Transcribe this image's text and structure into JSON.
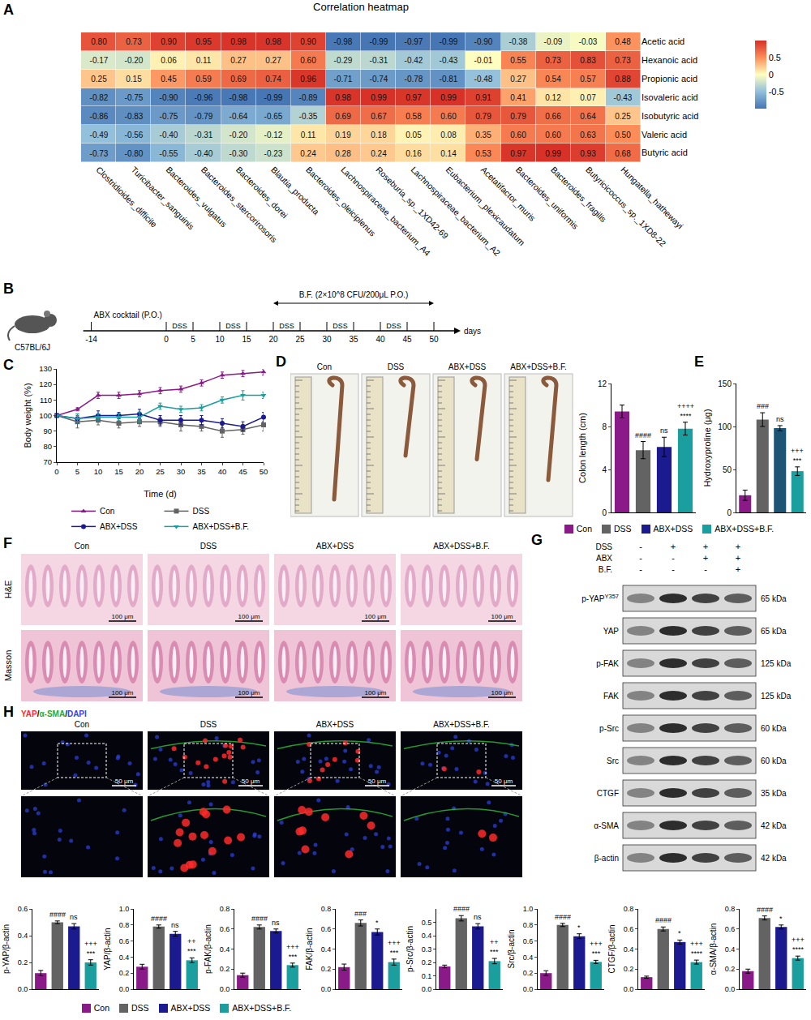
{
  "chart_data": [
    {
      "type": "heatmap",
      "panel": "A",
      "title": "Correlation heatmap",
      "x": [
        "Clostridioides_difficile",
        "Turicibacter_sanguinis",
        "Bacteroides_vulgatus",
        "Bacteroides_stercorirosoris",
        "Bacteroides_dorei",
        "Blautia_producta",
        "Bacteroides_oleiciplenus",
        "Lachnospiraceae_bacterium_A4",
        "Roseburia_sp._1XD42-69",
        "Lachnospiraceae_bacterium_A2",
        "Eubacterium_plexicaudatum",
        "Acetatifactor_muris",
        "Bacteroides_uniformis",
        "Bacteroides_fragilis",
        "Butyricicoccus_sp._1XD8-22",
        "Hungatella_hathewayi"
      ],
      "y": [
        "Acetic acid",
        "Hexanoic acid",
        "Propionic acid",
        "Isovaleric acid",
        "Isobutyric acid",
        "Valeric acid",
        "Butyric acid"
      ],
      "z": [
        [
          0.8,
          0.73,
          0.9,
          0.95,
          0.98,
          0.98,
          0.9,
          -0.98,
          -0.99,
          -0.97,
          -0.99,
          -0.9,
          -0.38,
          -0.09,
          -0.03,
          0.48
        ],
        [
          -0.17,
          -0.2,
          0.06,
          0.11,
          0.27,
          0.27,
          0.6,
          -0.29,
          -0.31,
          -0.42,
          -0.43,
          -0.01,
          0.55,
          0.73,
          0.83,
          0.73
        ],
        [
          0.25,
          0.15,
          0.45,
          0.59,
          0.69,
          0.74,
          0.96,
          -0.71,
          -0.74,
          -0.78,
          -0.81,
          -0.48,
          0.27,
          0.54,
          0.57,
          0.88
        ],
        [
          -0.82,
          -0.75,
          -0.9,
          -0.96,
          -0.98,
          -0.99,
          -0.89,
          0.98,
          0.99,
          0.97,
          0.99,
          0.91,
          0.41,
          0.12,
          0.07,
          -0.43
        ],
        [
          -0.86,
          -0.83,
          -0.75,
          -0.79,
          -0.64,
          -0.65,
          -0.35,
          0.69,
          0.67,
          0.58,
          0.6,
          0.79,
          0.79,
          0.66,
          0.64,
          0.25
        ],
        [
          -0.49,
          -0.56,
          -0.4,
          -0.31,
          -0.2,
          -0.12,
          0.11,
          0.19,
          0.18,
          0.05,
          0.08,
          0.35,
          0.6,
          0.6,
          0.63,
          0.5
        ],
        [
          -0.73,
          -0.8,
          -0.55,
          -0.4,
          -0.3,
          -0.23,
          0.24,
          0.28,
          0.24,
          0.16,
          0.14,
          0.53,
          0.97,
          0.99,
          0.93,
          0.68
        ]
      ],
      "data_labels": true,
      "colorbar": {
        "range": [
          -1,
          1
        ],
        "ticks": [
          0.5,
          0,
          -0.5
        ]
      }
    },
    {
      "type": "line",
      "panel": "C",
      "xlabel": "Time (d)",
      "ylabel": "Body weight (%)",
      "x": [
        0,
        5,
        10,
        15,
        20,
        25,
        30,
        35,
        40,
        45,
        50
      ],
      "xlim": [
        0,
        50
      ],
      "xticks": [
        0,
        5,
        10,
        15,
        20,
        25,
        30,
        35,
        40,
        45,
        50
      ],
      "ylim": [
        70,
        130
      ],
      "yticks": [
        70,
        80,
        90,
        100,
        110,
        120,
        130
      ],
      "legend": "bottom",
      "series": [
        {
          "name": "Con",
          "color": "#8b1a89",
          "marker": "triangle-up",
          "line_style": "solid",
          "values": [
            100,
            104,
            113,
            113,
            114,
            116,
            117,
            121,
            126,
            127,
            128
          ],
          "errors": [
            0,
            1,
            2,
            2,
            2,
            2,
            2,
            2,
            2,
            2,
            2
          ]
        },
        {
          "name": "DSS",
          "color": "#636363",
          "marker": "square",
          "line_style": "solid",
          "values": [
            100,
            96,
            97,
            95,
            96,
            96,
            94,
            93,
            90,
            91,
            94
          ],
          "errors": [
            0,
            4,
            3,
            3,
            3,
            3,
            4,
            3,
            4,
            3,
            4
          ]
        },
        {
          "name": "ABX+DSS",
          "color": "#1b1b8f",
          "marker": "circle",
          "line_style": "solid",
          "values": [
            100,
            98,
            100,
            100,
            101,
            97,
            97,
            97,
            95,
            93,
            99
          ],
          "errors": [
            0,
            3,
            3,
            2,
            3,
            3,
            3,
            3,
            3,
            3,
            3
          ]
        },
        {
          "name": "ABX+DSS+B.F.",
          "color": "#1a9e9e",
          "marker": "triangle-down",
          "line_style": "solid",
          "values": [
            100,
            98,
            99,
            99,
            99,
            106,
            104,
            105,
            110,
            113,
            113
          ],
          "errors": [
            0,
            3,
            2,
            2,
            3,
            2,
            2,
            2,
            2,
            3,
            2
          ]
        }
      ]
    },
    {
      "type": "bar",
      "ylabel": "Colon length (cm)",
      "categories": [
        "Con",
        "DSS",
        "ABX+DSS",
        "ABX+DSS+B.F."
      ],
      "values": [
        9.4,
        5.8,
        6.1,
        7.8
      ],
      "errors": [
        0.6,
        0.8,
        0.9,
        0.6
      ],
      "colors": [
        "#8b1a89",
        "#636363",
        "#1b1b8f",
        "#1a9e9e"
      ],
      "ylim": [
        0,
        12
      ],
      "yticks": [
        0,
        4,
        8,
        12
      ],
      "tick_labels": "y",
      "legend": "bottom",
      "significance": [
        null,
        "####",
        "ns",
        [
          "++++",
          "****"
        ]
      ]
    },
    {
      "type": "bar",
      "panel": "E",
      "ylabel": "Hydroxyproline (μg)",
      "categories": [
        "Con",
        "DSS",
        "ABX+DSS",
        "ABX+DSS+B.F."
      ],
      "values": [
        20,
        108,
        98,
        48
      ],
      "errors": [
        6,
        8,
        3,
        5
      ],
      "colors": [
        "#8b1a89",
        "#636363",
        "#1d5675",
        "#1a9e9e"
      ],
      "ylim": [
        0,
        150
      ],
      "yticks": [
        0,
        50,
        100,
        150
      ],
      "tick_labels": "y",
      "significance": [
        null,
        "###",
        "ns",
        [
          "+++",
          "***"
        ]
      ]
    },
    {
      "type": "bar",
      "ylabel": "p-YAP/β-actin",
      "categories": [
        "Con",
        "DSS",
        "ABX+DSS",
        "ABX+DSS+B.F."
      ],
      "values": [
        0.12,
        0.5,
        0.47,
        0.2
      ],
      "errors": [
        0.02,
        0.01,
        0.02,
        0.02
      ],
      "colors": [
        "#8b1a89",
        "#636363",
        "#1b1b8f",
        "#1a9e9e"
      ],
      "ylim": [
        0,
        0.6
      ],
      "yticks": [
        {
          "value": 0,
          "label": "0.0"
        },
        0.2,
        0.4,
        0.6
      ],
      "tick_labels": "y",
      "legend": "bottom",
      "significance": [
        null,
        "####",
        "ns",
        [
          "+++",
          "***"
        ]
      ]
    },
    {
      "type": "bar",
      "ylabel": "YAP/β-actin",
      "categories": [
        "Con",
        "DSS",
        "ABX+DSS",
        "ABX+DSS+B.F."
      ],
      "values": [
        0.28,
        0.78,
        0.69,
        0.36
      ],
      "errors": [
        0.03,
        0.02,
        0.03,
        0.03
      ],
      "colors": [
        "#8b1a89",
        "#636363",
        "#1b1b8f",
        "#1a9e9e"
      ],
      "ylim": [
        0,
        1
      ],
      "yticks": [
        {
          "value": 0,
          "label": "0.0"
        },
        0.2,
        0.4,
        0.6,
        0.8,
        {
          "value": 1,
          "label": "1.0"
        }
      ],
      "tick_labels": "y",
      "significance": [
        null,
        "####",
        "ns",
        [
          "++",
          "***"
        ]
      ]
    },
    {
      "type": "bar",
      "ylabel": "p-FAK/β-actin",
      "categories": [
        "Con",
        "DSS",
        "ABX+DSS",
        "ABX+DSS+B.F."
      ],
      "values": [
        0.14,
        0.62,
        0.58,
        0.24
      ],
      "errors": [
        0.02,
        0.02,
        0.02,
        0.02
      ],
      "colors": [
        "#8b1a89",
        "#636363",
        "#1b1b8f",
        "#1a9e9e"
      ],
      "ylim": [
        0,
        0.8
      ],
      "yticks": [
        {
          "value": 0,
          "label": "0.0"
        },
        0.2,
        0.4,
        0.6,
        0.8
      ],
      "tick_labels": "y",
      "significance": [
        null,
        "####",
        "ns",
        [
          "+++",
          "***"
        ]
      ]
    },
    {
      "type": "bar",
      "ylabel": "FAK/β-actin",
      "categories": [
        "Con",
        "DSS",
        "ABX+DSS",
        "ABX+DSS+B.F."
      ],
      "values": [
        0.22,
        0.66,
        0.57,
        0.27
      ],
      "errors": [
        0.03,
        0.03,
        0.03,
        0.03
      ],
      "colors": [
        "#8b1a89",
        "#636363",
        "#1b1b8f",
        "#1a9e9e"
      ],
      "ylim": [
        0,
        0.8
      ],
      "yticks": [
        {
          "value": 0,
          "label": "0.0"
        },
        0.2,
        0.4,
        0.6,
        0.8
      ],
      "tick_labels": "y",
      "significance": [
        null,
        "###",
        "*",
        [
          "+++",
          "***"
        ]
      ]
    },
    {
      "type": "bar",
      "ylabel": "p-Src/β-actin",
      "categories": [
        "Con",
        "DSS",
        "ABX+DSS",
        "ABX+DSS+B.F."
      ],
      "values": [
        0.17,
        0.53,
        0.47,
        0.21
      ],
      "errors": [
        0.01,
        0.02,
        0.02,
        0.02
      ],
      "colors": [
        "#8b1a89",
        "#636363",
        "#1b1b8f",
        "#1a9e9e"
      ],
      "ylim": [
        0,
        0.6
      ],
      "yticks": [
        {
          "value": 0,
          "label": "0.0"
        },
        0.1,
        0.2,
        0.3,
        0.4,
        0.5
      ],
      "tick_labels": "y",
      "significance": [
        null,
        "####",
        "ns",
        [
          "++",
          "***"
        ]
      ]
    },
    {
      "type": "bar",
      "ylabel": "Src/β-actin",
      "categories": [
        "Con",
        "DSS",
        "ABX+DSS",
        "ABX+DSS+B.F."
      ],
      "values": [
        0.2,
        0.8,
        0.66,
        0.34
      ],
      "errors": [
        0.03,
        0.02,
        0.03,
        0.02
      ],
      "colors": [
        "#8b1a89",
        "#636363",
        "#1b1b8f",
        "#1a9e9e"
      ],
      "ylim": [
        0,
        1
      ],
      "yticks": [
        {
          "value": 0,
          "label": "0.0"
        },
        0.2,
        0.4,
        0.6,
        0.8,
        {
          "value": 1,
          "label": "1.0"
        }
      ],
      "tick_labels": "y",
      "significance": [
        null,
        "####",
        "*",
        [
          "+++",
          "***"
        ]
      ]
    },
    {
      "type": "bar",
      "ylabel": "CTGF/β-actin",
      "categories": [
        "Con",
        "DSS",
        "ABX+DSS",
        "ABX+DSS+B.F."
      ],
      "values": [
        0.12,
        0.6,
        0.47,
        0.27
      ],
      "errors": [
        0.01,
        0.02,
        0.02,
        0.02
      ],
      "colors": [
        "#8b1a89",
        "#636363",
        "#1b1b8f",
        "#1a9e9e"
      ],
      "ylim": [
        0,
        0.8
      ],
      "yticks": [
        {
          "value": 0,
          "label": "0.0"
        },
        0.2,
        0.4,
        0.6,
        0.8
      ],
      "tick_labels": "y",
      "significance": [
        null,
        "####",
        "*",
        [
          "+++",
          "****"
        ]
      ]
    },
    {
      "type": "bar",
      "ylabel": "α-SMA/β-actin",
      "categories": [
        "Con",
        "DSS",
        "ABX+DSS",
        "ABX+DSS+B.F."
      ],
      "values": [
        0.18,
        0.71,
        0.62,
        0.31
      ],
      "errors": [
        0.02,
        0.02,
        0.02,
        0.02
      ],
      "colors": [
        "#8b1a89",
        "#636363",
        "#1b1b8f",
        "#1a9e9e"
      ],
      "ylim": [
        0,
        0.8
      ],
      "yticks": [
        {
          "value": 0,
          "label": "0.0"
        },
        0.2,
        0.4,
        0.6,
        0.8
      ],
      "tick_labels": "y",
      "significance": [
        null,
        "####",
        "*",
        [
          "+++",
          "****"
        ]
      ]
    }
  ],
  "timeline": {
    "panel": "B",
    "strain": "C57BL/6J",
    "abx_label": "ABX cocktail (P.O.)",
    "dss_label": "DSS",
    "dss_periods": [
      [
        0,
        5
      ],
      [
        10,
        15
      ],
      [
        20,
        25
      ],
      [
        30,
        35
      ],
      [
        40,
        45
      ]
    ],
    "bf_label": "B.F. (2×10^8 CFU/200μL P.O.)",
    "bf_period": [
      20,
      50
    ],
    "day_ticks": [
      -14,
      0,
      5,
      10,
      15,
      20,
      25,
      30,
      35,
      40,
      45,
      50
    ],
    "unit": "days"
  },
  "colon_photos": {
    "panel": "D",
    "columns": [
      "Con",
      "DSS",
      "ABX+DSS",
      "ABX+DSS+B.F."
    ]
  },
  "histology": {
    "panel": "F",
    "columns": [
      "Con",
      "DSS",
      "ABX+DSS",
      "ABX+DSS+B.F."
    ],
    "rows": [
      "H&E",
      "Masson"
    ],
    "scale_bar": "100 μm"
  },
  "western_blot": {
    "panel": "G",
    "conditions": [
      {
        "label": "DSS",
        "signs": [
          "-",
          "+",
          "+",
          "+"
        ]
      },
      {
        "label": "ABX",
        "signs": [
          "-",
          "-",
          "+",
          "+"
        ]
      },
      {
        "label": "B.F.",
        "signs": [
          "-",
          "-",
          "-",
          "+"
        ]
      }
    ],
    "bands": [
      {
        "protein": "p-YAP",
        "superscript": "Y357",
        "kda": "65 kDa"
      },
      {
        "protein": "YAP",
        "kda": "65 kDa"
      },
      {
        "protein": "p-FAK",
        "kda": "125 kDa"
      },
      {
        "protein": "FAK",
        "kda": "125 kDa"
      },
      {
        "protein": "p-Src",
        "kda": "60 kDa"
      },
      {
        "protein": "Src",
        "kda": "60 kDa"
      },
      {
        "protein": "CTGF",
        "kda": "35 kDa"
      },
      {
        "protein": "α-SMA",
        "kda": "42 kDa"
      },
      {
        "protein": "β-actin",
        "kda": "42 kDa"
      }
    ]
  },
  "immunofluorescence": {
    "panel": "H",
    "columns": [
      "Con",
      "DSS",
      "ABX+DSS",
      "ABX+DSS+B.F."
    ],
    "stains": {
      "parts": [
        {
          "text": "YAP",
          "color": "#ff2a2a"
        },
        {
          "text": "α-SMA",
          "color": "#1fae2a"
        },
        {
          "text": "DAPI",
          "color": "#2f46e0"
        }
      ],
      "separator": "/"
    },
    "scale_bar": "50 μm"
  }
}
